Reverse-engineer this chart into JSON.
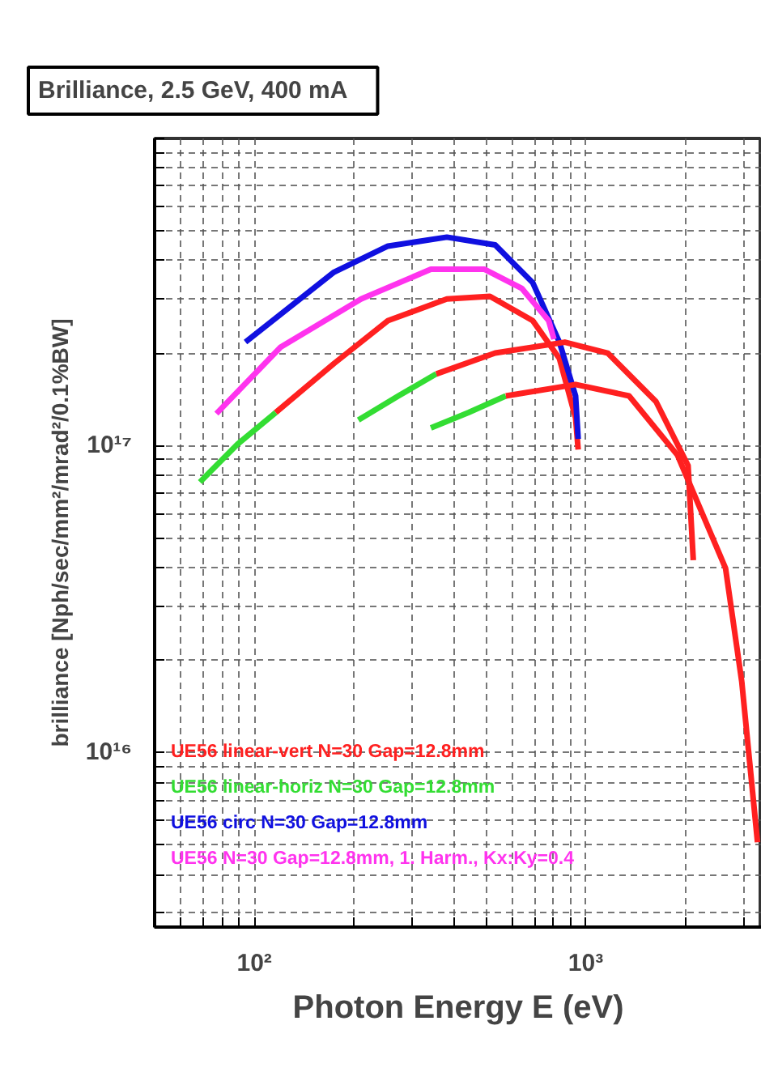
{
  "chart_data": {
    "type": "line",
    "title": "Brilliance,    2.5 GeV, 400 mA",
    "xlabel": "Photon Energy E (eV)",
    "ylabel": "brilliance [Nph/sec/mm²/mrad²/0.1%BW]",
    "log": "xy",
    "grid": true,
    "legend": "bottom left",
    "xlim": [
      50,
      3400
    ],
    "ylim": [
      2700000000000000.0,
      1e+18
    ],
    "xticks": [
      {
        "value": 50,
        "label": null
      },
      {
        "value": 60,
        "label": null
      },
      {
        "value": 70,
        "label": null
      },
      {
        "value": 80,
        "label": null
      },
      {
        "value": 90,
        "label": null
      },
      {
        "value": 100,
        "label": "10²"
      },
      {
        "value": 200,
        "label": null
      },
      {
        "value": 300,
        "label": null
      },
      {
        "value": 400,
        "label": null
      },
      {
        "value": 500,
        "label": null
      },
      {
        "value": 600,
        "label": null
      },
      {
        "value": 700,
        "label": null
      },
      {
        "value": 800,
        "label": null
      },
      {
        "value": 900,
        "label": null
      },
      {
        "value": 1000,
        "label": "10³"
      },
      {
        "value": 2000,
        "label": null
      },
      {
        "value": 3000,
        "label": null
      }
    ],
    "yticks": [
      {
        "value": 3000000000000000.0,
        "label": null
      },
      {
        "value": 4000000000000000.0,
        "label": null
      },
      {
        "value": 5000000000000000.0,
        "label": null
      },
      {
        "value": 6000000000000000.0,
        "label": null
      },
      {
        "value": 7000000000000000.0,
        "label": null
      },
      {
        "value": 8000000000000000.0,
        "label": null
      },
      {
        "value": 9000000000000000.0,
        "label": null
      },
      {
        "value": 1e+16,
        "label": "10¹⁶"
      },
      {
        "value": 2e+16,
        "label": null
      },
      {
        "value": 3e+16,
        "label": null
      },
      {
        "value": 4e+16,
        "label": null
      },
      {
        "value": 5e+16,
        "label": null
      },
      {
        "value": 6e+16,
        "label": null
      },
      {
        "value": 7e+16,
        "label": null
      },
      {
        "value": 8e+16,
        "label": null
      },
      {
        "value": 9e+16,
        "label": null
      },
      {
        "value": 1e+17,
        "label": "10¹⁷"
      },
      {
        "value": 2e+17,
        "label": null
      },
      {
        "value": 3e+17,
        "label": null
      },
      {
        "value": 4e+17,
        "label": null
      },
      {
        "value": 5e+17,
        "label": null
      },
      {
        "value": 6e+17,
        "label": null
      },
      {
        "value": 7e+17,
        "label": null
      },
      {
        "value": 8e+17,
        "label": null
      },
      {
        "value": 9e+17,
        "label": null
      },
      {
        "value": 1e+18,
        "label": null
      }
    ],
    "series": [
      {
        "name": "UE56 linear-vert N=30 Gap=12.8mm",
        "color": "#ff2020",
        "x": [
          116,
          174,
          253,
          381,
          514,
          692,
          833,
          932,
          949
        ],
        "values": [
          1.28e+17,
          1.85e+17,
          2.55e+17,
          3e+17,
          3.06e+17,
          2.55e+17,
          1.92e+17,
          1.23e+17,
          9.7e+16
        ]
      },
      {
        "name": "UE56 linear-horiz N=30 Gap=12.8mm",
        "color": "#33dd33",
        "x": [
          68.5,
          89,
          116
        ],
        "values": [
          7.6e+16,
          1.01e+17,
          1.28e+17
        ]
      },
      {
        "name": "UE56 circ N=30 Gap=12.8mm",
        "color": "#1010e0",
        "x": [
          94,
          174,
          253,
          381,
          533,
          692,
          833,
          932,
          949
        ],
        "values": [
          2.17e+17,
          3.67e+17,
          4.46e+17,
          4.77e+17,
          4.5e+17,
          3.39e+17,
          2.17e+17,
          1.45e+17,
          1.05e+17
        ]
      },
      {
        "name": "UE56 N=30 Gap=12.8mm, 1. Harm., Kx:Ky=0.4",
        "color": "#ff33ee",
        "x": [
          76.8,
          120,
          210,
          341,
          495,
          641,
          773,
          802
        ],
        "values": [
          1.27e+17,
          2.09e+17,
          3e+17,
          3.75e+17,
          3.75e+17,
          3.25e+17,
          2.55e+17,
          2.22e+17
        ]
      },
      {
        "color": "#33dd33",
        "x": [
          206,
          272,
          354
        ],
        "values": [
          1.21e+17,
          1.45e+17,
          1.71e+17
        ]
      },
      {
        "color": "#ff2020",
        "x": [
          354,
          533,
          865,
          1165,
          1630,
          2037,
          2112
        ],
        "values": [
          1.71e+17,
          2e+17,
          2.17e+17,
          2e+17,
          1.39e+17,
          8.6e+16,
          4.23e+16
        ]
      },
      {
        "color": "#33dd33",
        "x": [
          341,
          443,
          574
        ],
        "values": [
          1.14e+17,
          1.28e+17,
          1.45e+17
        ]
      },
      {
        "color": "#ff2020",
        "x": [
          574,
          932,
          1352,
          1892,
          2643,
          2958,
          3300
        ],
        "values": [
          1.45e+17,
          1.58e+17,
          1.45e+17,
          9.3e+16,
          3.98e+16,
          1.7e+16,
          5100000000000000.0
        ]
      }
    ]
  }
}
